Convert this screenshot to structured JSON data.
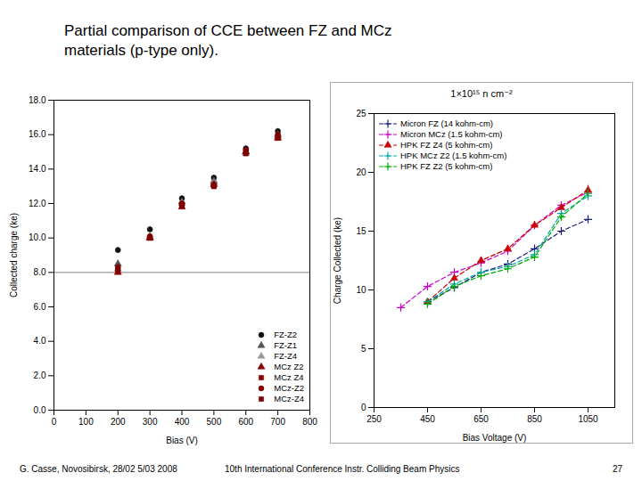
{
  "title": [
    "Partial comparison of CCE between FZ and MCz",
    "materials (p-type only)."
  ],
  "footer": [
    "G. Casse, Novosibirsk, 28/02 5/03 2008",
    "10th International Conference Instr. Colliding Beam Physics",
    "27"
  ],
  "chart_data": [
    {
      "type": "scatter",
      "xlabel": "Bias (V)",
      "ylabel": "Collected charge (ke)",
      "xlim": [
        0,
        800
      ],
      "ylim": [
        0,
        18
      ],
      "xticks": [
        0,
        100,
        200,
        300,
        400,
        500,
        600,
        700,
        800
      ],
      "yticks": [
        {
          "value": 0,
          "label": "0.0"
        },
        {
          "value": 2,
          "label": "2.0"
        },
        {
          "value": 4,
          "label": "4.0"
        },
        {
          "value": 6,
          "label": "6.0"
        },
        {
          "value": 8,
          "label": "8.0"
        },
        {
          "value": 10,
          "label": "10.0"
        },
        {
          "value": 12,
          "label": "12.0"
        },
        {
          "value": 14,
          "label": "14.0"
        },
        {
          "value": 16,
          "label": "16.0"
        },
        {
          "value": 18,
          "label": "18.0"
        }
      ],
      "reference_line": 8,
      "grid": false,
      "legend": "lower right",
      "series": [
        {
          "name": "FZ-Z2",
          "color": "#111111",
          "marker": "circle",
          "x": [
            200,
            300,
            400,
            500,
            600,
            700
          ],
          "values": [
            9.3,
            10.5,
            12.3,
            13.5,
            15.2,
            16.2
          ],
          "yerr": [
            0.15,
            0.15,
            0.15,
            0.15,
            0.15,
            0.15
          ]
        },
        {
          "name": "FZ-Z1",
          "color": "#555555",
          "marker": "triangle",
          "x": [
            200,
            300,
            400,
            500,
            600,
            700
          ],
          "values": [
            8.5,
            10.0,
            12.1,
            13.3,
            15.0,
            16.0
          ],
          "yerr": [
            0.15,
            0.15,
            0.15,
            0.15,
            0.15,
            0.15
          ]
        },
        {
          "name": "FZ-Z4",
          "color": "#999999",
          "marker": "triangle",
          "x": [
            200,
            300,
            400,
            500,
            600,
            700
          ],
          "values": [
            8.2,
            10.1,
            12.0,
            13.2,
            14.9,
            15.9
          ],
          "yerr": [
            0.15,
            0.15,
            0.15,
            0.15,
            0.15,
            0.15
          ]
        },
        {
          "name": "MCz Z2",
          "color": "#8B0000",
          "marker": "triangle",
          "x": [
            200,
            300,
            400,
            500,
            600,
            700
          ],
          "values": [
            8.0,
            10.0,
            11.8,
            13.1,
            15.0,
            15.8
          ],
          "yerr": [
            0.15,
            0.15,
            0.15,
            0.15,
            0.15,
            0.15
          ]
        },
        {
          "name": "MCz Z4",
          "color": "#8B0000",
          "marker": "square",
          "x": [
            200,
            300,
            400,
            500,
            600,
            700
          ],
          "values": [
            8.1,
            10.0,
            11.9,
            13.0,
            15.0,
            15.9
          ],
          "yerr": [
            0.15,
            0.15,
            0.15,
            0.15,
            0.15,
            0.15
          ]
        },
        {
          "name": "MCz-Z2",
          "color": "#800000",
          "marker": "circle",
          "x": [
            200,
            300,
            400,
            500,
            600,
            700
          ],
          "values": [
            8.3,
            10.1,
            12.0,
            13.1,
            15.1,
            16.0
          ],
          "yerr": [
            0.15,
            0.15,
            0.15,
            0.15,
            0.15,
            0.15
          ]
        },
        {
          "name": "MCz-Z4",
          "color": "#800000",
          "marker": "square",
          "x": [
            200,
            300,
            400,
            500,
            600,
            700
          ],
          "values": [
            8.2,
            10.0,
            11.9,
            13.0,
            14.9,
            15.8
          ],
          "yerr": [
            0.15,
            0.15,
            0.15,
            0.15,
            0.15,
            0.15
          ]
        }
      ]
    },
    {
      "type": "line",
      "title": "1×10¹⁵ n cm⁻²",
      "xlabel": "Bias Voltage (V)",
      "ylabel": "Charge Collected (ke)",
      "xlim": [
        250,
        1150
      ],
      "ylim": [
        0,
        25
      ],
      "xticks": [
        250,
        450,
        650,
        850,
        1050
      ],
      "yticks": [
        0,
        5,
        10,
        15,
        20,
        25
      ],
      "grid": false,
      "legend": "upper left",
      "series": [
        {
          "name": "Micron FZ (14 kohm-cm)",
          "color": "#1a1a7a",
          "line_style": "dashed",
          "marker": "plus",
          "x": [
            450,
            550,
            650,
            750,
            850,
            950,
            1050
          ],
          "values": [
            9.0,
            10.2,
            11.5,
            12.2,
            13.5,
            15.0,
            16.0
          ],
          "yerr": [
            0.3,
            0.3,
            0.3,
            0.3,
            0.3,
            0.3,
            0.3
          ]
        },
        {
          "name": "Micron MCz (1.5 kohm-cm)",
          "color": "#cc00cc",
          "line_style": "dashed",
          "marker": "plus",
          "x": [
            350,
            450,
            550,
            650,
            750,
            850,
            950,
            1050
          ],
          "values": [
            8.5,
            10.3,
            11.5,
            12.3,
            13.3,
            15.5,
            17.2,
            18.3
          ],
          "yerr": [
            0.3,
            0.3,
            0.3,
            0.3,
            0.3,
            0.3,
            0.3,
            0.3
          ]
        },
        {
          "name": "HPK FZ Z4 (5 kohm-cm)",
          "color": "#cc0000",
          "line_style": "dashed",
          "marker": "triangle",
          "x": [
            450,
            550,
            650,
            750,
            850,
            950,
            1050
          ],
          "values": [
            9.0,
            11.0,
            12.5,
            13.5,
            15.5,
            17.0,
            18.5
          ],
          "yerr": [
            0.3,
            0.3,
            0.3,
            0.3,
            0.3,
            0.3,
            0.4
          ]
        },
        {
          "name": "HPK MCz Z2 (1.5 kohm-cm)",
          "color": "#00aaaa",
          "line_style": "dashed",
          "marker": "plus",
          "x": [
            450,
            550,
            650,
            750,
            850,
            950,
            1050
          ],
          "values": [
            9.0,
            10.5,
            11.5,
            12.0,
            13.0,
            16.5,
            18.0
          ],
          "yerr": [
            0.3,
            0.3,
            0.3,
            0.3,
            0.3,
            0.3,
            0.4
          ]
        },
        {
          "name": "HPK FZ Z2 (5 kohm-cm)",
          "color": "#00aa00",
          "line_style": "dashed",
          "marker": "plus",
          "x": [
            450,
            550,
            650,
            750,
            850,
            950,
            1050
          ],
          "values": [
            8.8,
            10.3,
            11.2,
            11.8,
            12.8,
            16.2,
            18.2
          ],
          "yerr": [
            0.3,
            0.3,
            0.3,
            0.3,
            0.3,
            0.3,
            0.4
          ]
        }
      ]
    }
  ]
}
